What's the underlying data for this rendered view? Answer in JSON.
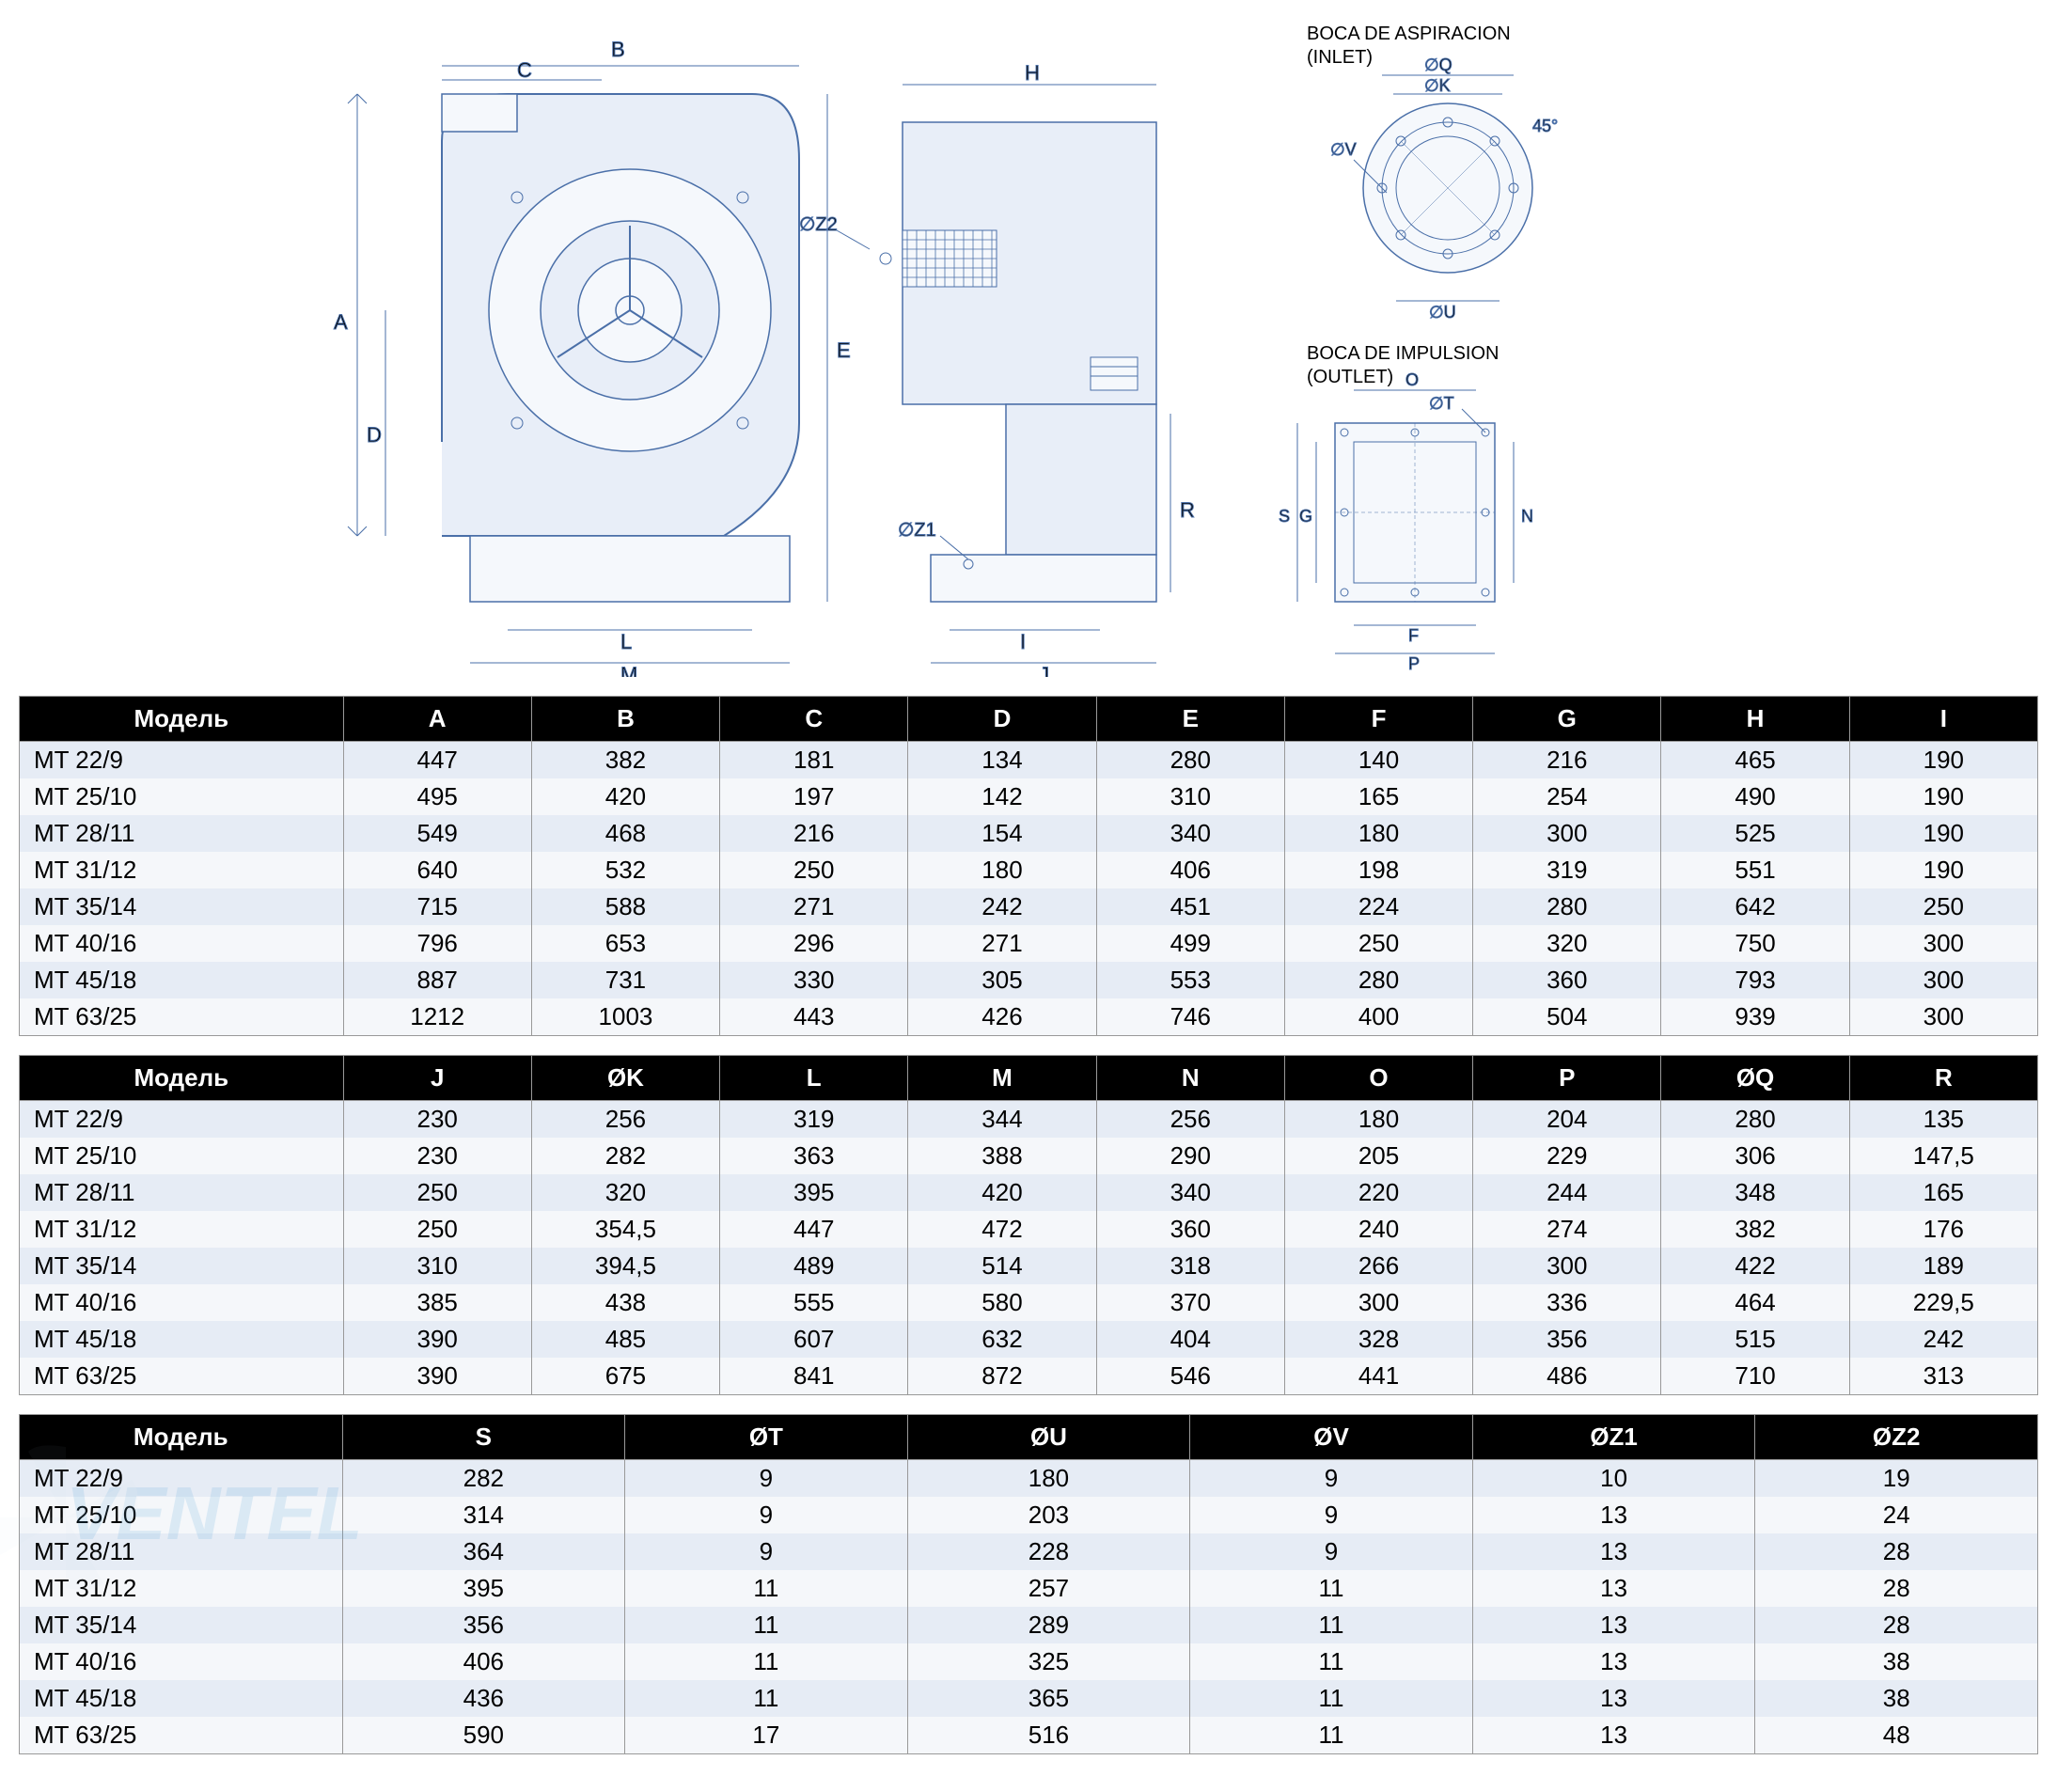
{
  "diagram": {
    "inlet_label_es": "BOCA DE ASPIRACION",
    "inlet_label_en": "(INLET)",
    "outlet_label_es": "BOCA DE IMPULSION",
    "outlet_label_en": "(OUTLET)",
    "angle_label": "45°",
    "dim_labels": {
      "A": "A",
      "B": "B",
      "C": "C",
      "D": "D",
      "E": "E",
      "F": "F",
      "G": "G",
      "H": "H",
      "I": "I",
      "J": "J",
      "L": "L",
      "M": "M",
      "N": "N",
      "O": "O",
      "P": "P",
      "R": "R",
      "S": "S",
      "Z1": "Z1",
      "Z2": "Z2",
      "dK": "∅K",
      "dQ": "∅Q",
      "dT": "∅T",
      "dU": "∅U",
      "dV": "∅V"
    }
  },
  "table1": {
    "header_model": "Модель",
    "columns": [
      "A",
      "B",
      "C",
      "D",
      "E",
      "F",
      "G",
      "H",
      "I"
    ],
    "rows": [
      {
        "model": "MT 22/9",
        "values": [
          "447",
          "382",
          "181",
          "134",
          "280",
          "140",
          "216",
          "465",
          "190"
        ]
      },
      {
        "model": "MT 25/10",
        "values": [
          "495",
          "420",
          "197",
          "142",
          "310",
          "165",
          "254",
          "490",
          "190"
        ]
      },
      {
        "model": "MT 28/11",
        "values": [
          "549",
          "468",
          "216",
          "154",
          "340",
          "180",
          "300",
          "525",
          "190"
        ]
      },
      {
        "model": "MT 31/12",
        "values": [
          "640",
          "532",
          "250",
          "180",
          "406",
          "198",
          "319",
          "551",
          "190"
        ]
      },
      {
        "model": "MT 35/14",
        "values": [
          "715",
          "588",
          "271",
          "242",
          "451",
          "224",
          "280",
          "642",
          "250"
        ]
      },
      {
        "model": "MT 40/16",
        "values": [
          "796",
          "653",
          "296",
          "271",
          "499",
          "250",
          "320",
          "750",
          "300"
        ]
      },
      {
        "model": "MT 45/18",
        "values": [
          "887",
          "731",
          "330",
          "305",
          "553",
          "280",
          "360",
          "793",
          "300"
        ]
      },
      {
        "model": "MT 63/25",
        "values": [
          "1212",
          "1003",
          "443",
          "426",
          "746",
          "400",
          "504",
          "939",
          "300"
        ]
      }
    ]
  },
  "table2": {
    "header_model": "Модель",
    "columns": [
      "J",
      "ØK",
      "L",
      "M",
      "N",
      "O",
      "P",
      "ØQ",
      "R"
    ],
    "rows": [
      {
        "model": "MT 22/9",
        "values": [
          "230",
          "256",
          "319",
          "344",
          "256",
          "180",
          "204",
          "280",
          "135"
        ]
      },
      {
        "model": "MT 25/10",
        "values": [
          "230",
          "282",
          "363",
          "388",
          "290",
          "205",
          "229",
          "306",
          "147,5"
        ]
      },
      {
        "model": "MT 28/11",
        "values": [
          "250",
          "320",
          "395",
          "420",
          "340",
          "220",
          "244",
          "348",
          "165"
        ]
      },
      {
        "model": "MT 31/12",
        "values": [
          "250",
          "354,5",
          "447",
          "472",
          "360",
          "240",
          "274",
          "382",
          "176"
        ]
      },
      {
        "model": "MT 35/14",
        "values": [
          "310",
          "394,5",
          "489",
          "514",
          "318",
          "266",
          "300",
          "422",
          "189"
        ]
      },
      {
        "model": "MT 40/16",
        "values": [
          "385",
          "438",
          "555",
          "580",
          "370",
          "300",
          "336",
          "464",
          "229,5"
        ]
      },
      {
        "model": "MT 45/18",
        "values": [
          "390",
          "485",
          "607",
          "632",
          "404",
          "328",
          "356",
          "515",
          "242"
        ]
      },
      {
        "model": "MT 63/25",
        "values": [
          "390",
          "675",
          "841",
          "872",
          "546",
          "441",
          "486",
          "710",
          "313"
        ]
      }
    ]
  },
  "table3": {
    "header_model": "Модель",
    "columns": [
      "S",
      "ØT",
      "ØU",
      "ØV",
      "ØZ1",
      "ØZ2"
    ],
    "rows": [
      {
        "model": "MT 22/9",
        "values": [
          "282",
          "9",
          "180",
          "9",
          "10",
          "19"
        ]
      },
      {
        "model": "MT 25/10",
        "values": [
          "314",
          "9",
          "203",
          "9",
          "13",
          "24"
        ]
      },
      {
        "model": "MT 28/11",
        "values": [
          "364",
          "9",
          "228",
          "9",
          "13",
          "28"
        ]
      },
      {
        "model": "MT 31/12",
        "values": [
          "395",
          "11",
          "257",
          "11",
          "13",
          "28"
        ]
      },
      {
        "model": "MT 35/14",
        "values": [
          "356",
          "11",
          "289",
          "11",
          "13",
          "28"
        ]
      },
      {
        "model": "MT 40/16",
        "values": [
          "406",
          "11",
          "325",
          "11",
          "13",
          "38"
        ]
      },
      {
        "model": "MT 45/18",
        "values": [
          "436",
          "11",
          "365",
          "11",
          "13",
          "38"
        ]
      },
      {
        "model": "MT 63/25",
        "values": [
          "590",
          "17",
          "516",
          "11",
          "13",
          "48"
        ]
      }
    ]
  },
  "styling": {
    "header_bg": "#000000",
    "header_fg": "#ffffff",
    "row_odd_bg": "#e6ecf5",
    "row_even_bg": "#f5f7fa",
    "border_color": "#999999",
    "diagram_stroke": "#4a6fa8",
    "font_size_table": 26,
    "font_size_label": 20,
    "watermark_text": "VENTEL",
    "watermark_color": "#4a9fd8"
  }
}
